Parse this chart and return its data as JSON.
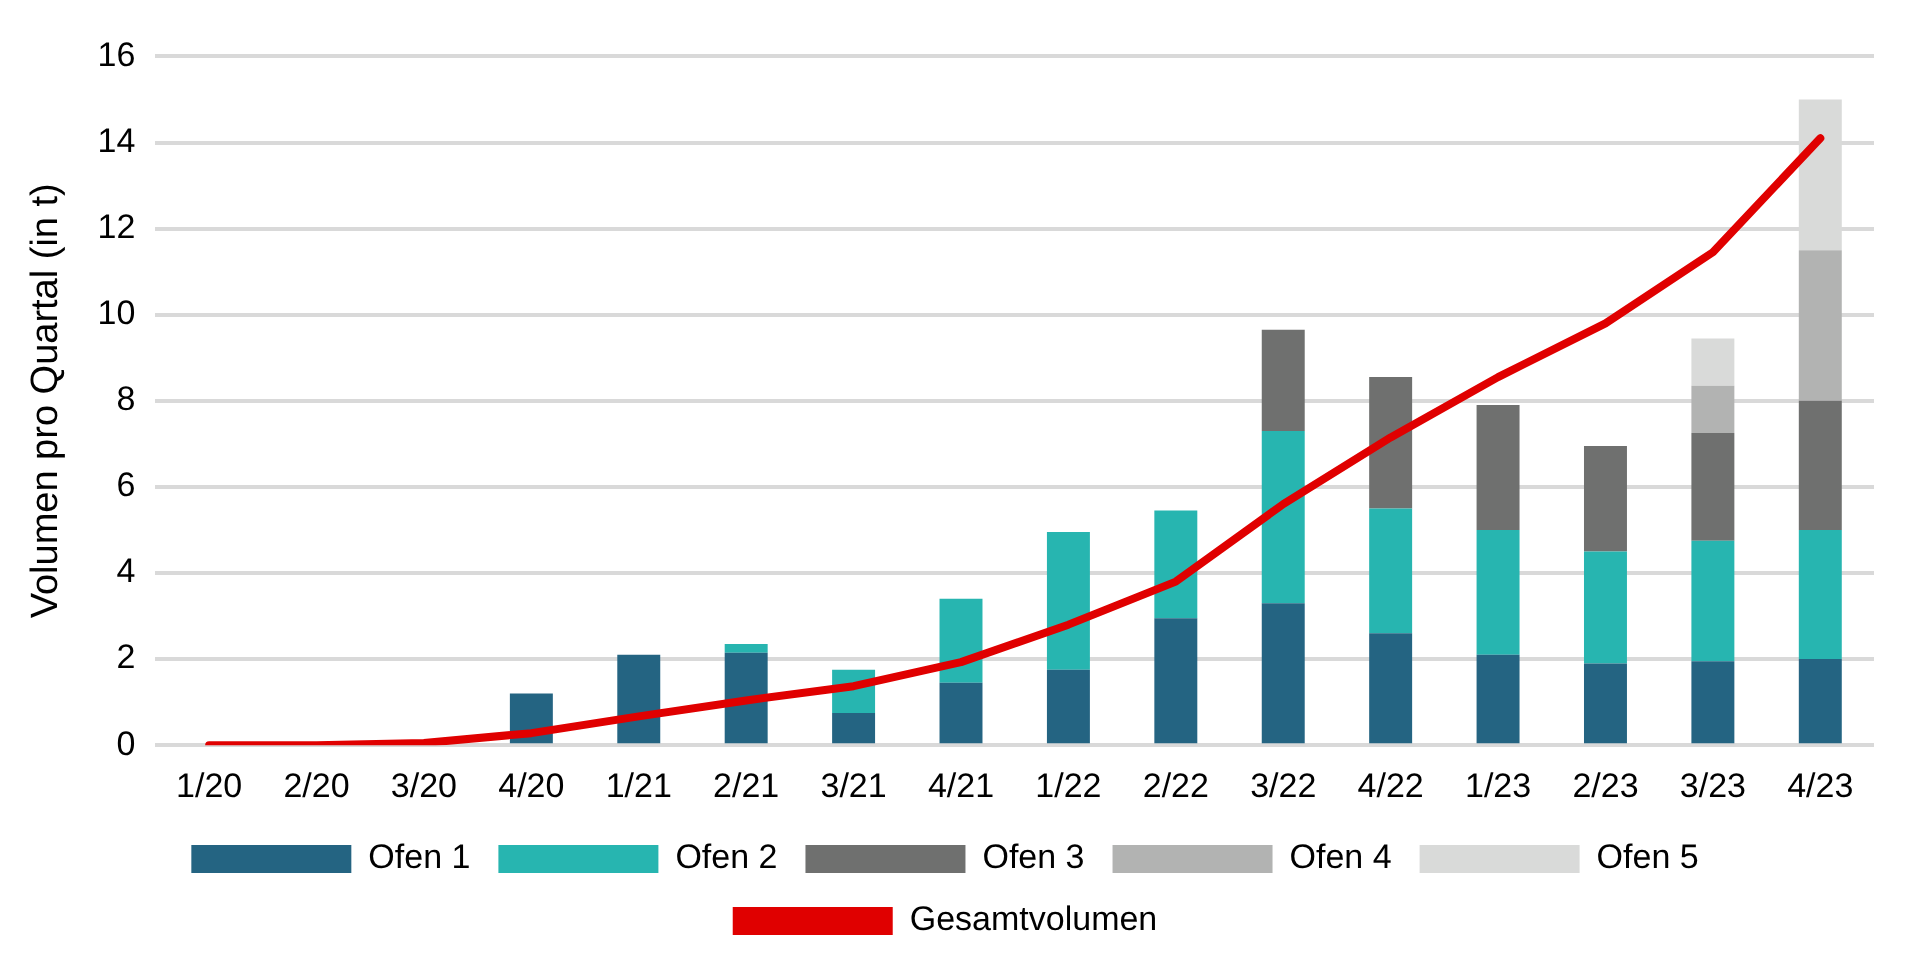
{
  "chart_data": {
    "type": "bar",
    "stacked": true,
    "ylabel": "Volumen pro Quartal (in t)",
    "categories": [
      "1/20",
      "2/20",
      "3/20",
      "4/20",
      "1/21",
      "2/21",
      "3/21",
      "4/21",
      "1/22",
      "2/22",
      "3/22",
      "4/22",
      "1/23",
      "2/23",
      "3/23",
      "4/23"
    ],
    "series": [
      {
        "name": "Ofen 1",
        "color": "#246482",
        "values": [
          0,
          0,
          0,
          1.2,
          2.1,
          2.15,
          0.75,
          1.45,
          1.75,
          2.95,
          3.3,
          2.6,
          2.1,
          1.9,
          1.95,
          2
        ]
      },
      {
        "name": "Ofen 2",
        "color": "#27b5b0",
        "values": [
          0,
          0,
          0,
          0,
          0,
          0.2,
          1.0,
          1.95,
          3.2,
          2.5,
          4.0,
          2.9,
          2.9,
          2.6,
          2.8,
          3
        ]
      },
      {
        "name": "Ofen 3",
        "color": "#6f706f",
        "values": [
          0,
          0,
          0,
          0,
          0,
          0,
          0,
          0,
          0,
          0,
          2.35,
          3.05,
          2.9,
          2.45,
          2.5,
          3
        ]
      },
      {
        "name": "Ofen 4",
        "color": "#b2b3b2",
        "values": [
          0,
          0,
          0,
          0,
          0,
          0,
          0,
          0,
          0,
          0,
          0,
          0,
          0,
          0,
          1.1,
          3.5
        ]
      },
      {
        "name": "Ofen 5",
        "color": "#d9dad9",
        "values": [
          0,
          0,
          0,
          0,
          0,
          0,
          0,
          0,
          0,
          0,
          0,
          0,
          0,
          0,
          1.1,
          3.5
        ]
      },
      {
        "name": "Gesamtvolumen",
        "type": "line",
        "color": "#e00000",
        "values": [
          0,
          0,
          0.05,
          0.28,
          0.67,
          1.04,
          1.37,
          1.93,
          2.8,
          3.8,
          5.6,
          7.15,
          8.55,
          9.8,
          11.45,
          14.1
        ]
      }
    ],
    "ylim": [
      0,
      16
    ],
    "yticks": [
      0,
      2,
      4,
      6,
      8,
      10,
      12,
      14,
      16
    ],
    "grid": "y",
    "legend": "bottom",
    "marker": "none"
  }
}
